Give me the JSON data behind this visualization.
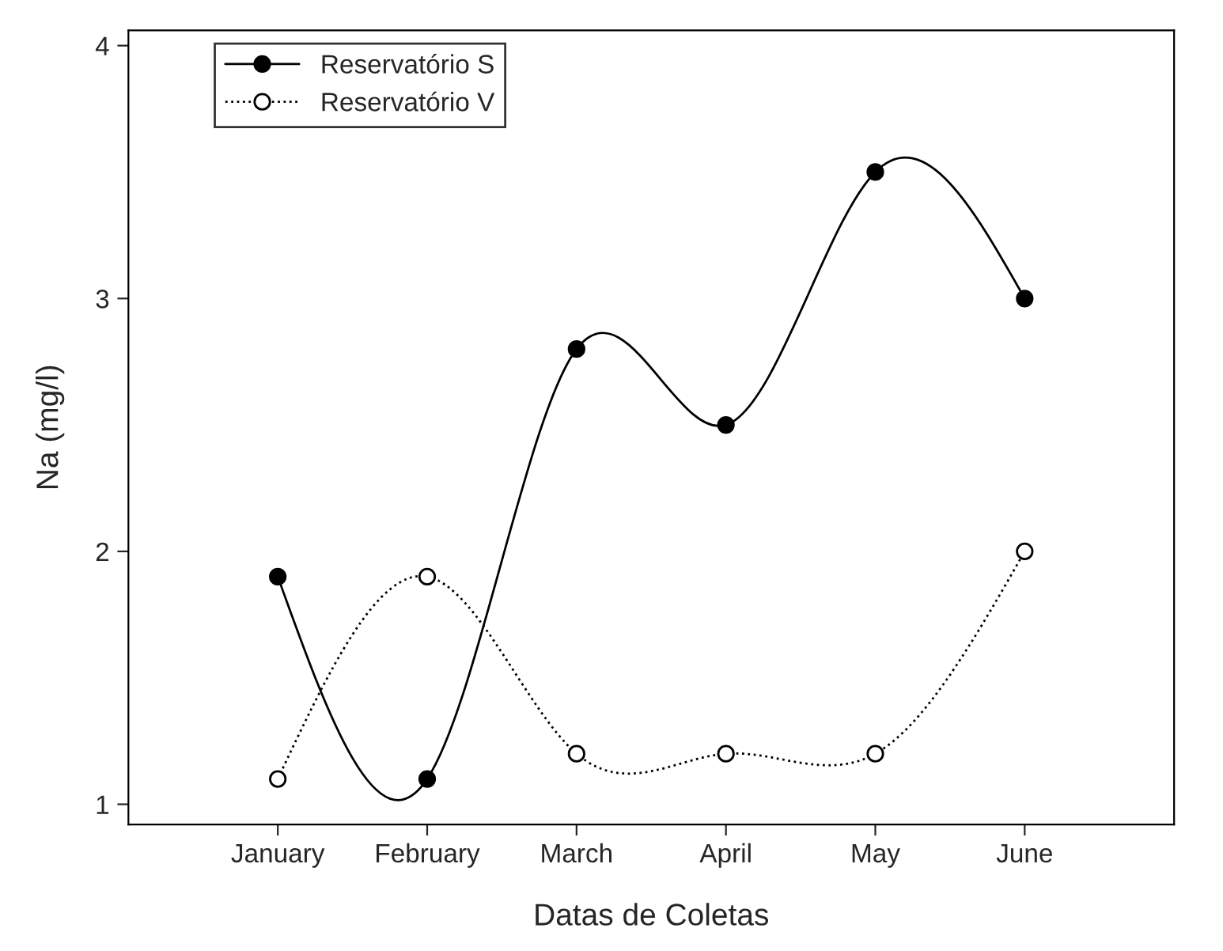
{
  "chart_data": {
    "type": "line",
    "xlabel": "Datas de Coletas",
    "ylabel": "Na (mg/l)",
    "categories": [
      "January",
      "February",
      "March",
      "April",
      "May",
      "June"
    ],
    "series": [
      {
        "name": "Reservatório S",
        "color": "#000000",
        "values": [
          1.9,
          1.1,
          2.8,
          2.5,
          3.5,
          3.0
        ],
        "marker": "circle",
        "line_style": "solid"
      },
      {
        "name": "Reservatório V",
        "color": "#000000",
        "values": [
          1.1,
          1.9,
          1.2,
          1.2,
          1.2,
          2.0
        ],
        "marker": "circle",
        "line_style": "dotted"
      }
    ],
    "ylim": [
      0.92,
      4.06
    ],
    "yticks": [
      1,
      2,
      3,
      4
    ],
    "grid": false,
    "legend": "top left"
  }
}
